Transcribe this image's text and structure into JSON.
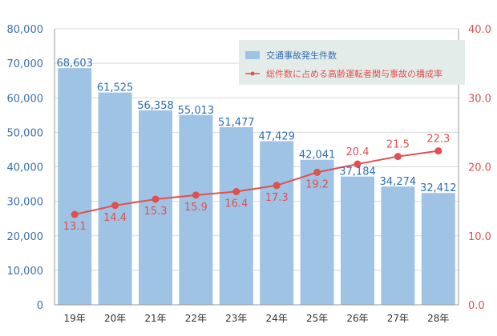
{
  "chart_data": {
    "type": "bar",
    "categories": [
      "19年",
      "20年",
      "21年",
      "22年",
      "23年",
      "24年",
      "25年",
      "26年",
      "27年",
      "28年"
    ],
    "series": [
      {
        "name": "交通事故発生件数",
        "type": "bar",
        "axis": "left",
        "color": "#9fc3e4",
        "values": [
          68603,
          61525,
          56358,
          55013,
          51477,
          47429,
          42041,
          37184,
          34274,
          32412
        ],
        "labels": [
          "68,603",
          "61,525",
          "56,358",
          "55,013",
          "51,477",
          "47,429",
          "42,041",
          "37,184",
          "34,274",
          "32,412"
        ]
      },
      {
        "name": "総件数に占める高齢運転者関与事故の構成率",
        "type": "line",
        "axis": "right",
        "color": "#e0504e",
        "values": [
          13.1,
          14.4,
          15.3,
          15.9,
          16.4,
          17.3,
          19.2,
          20.4,
          21.5,
          22.3
        ],
        "labels": [
          "13.1",
          "14.4",
          "15.3",
          "15.9",
          "16.4",
          "17.3",
          "19.2",
          "20.4",
          "21.5",
          "22.3"
        ]
      }
    ],
    "y_left": {
      "ylim": [
        0,
        80000
      ],
      "ticks": [
        0,
        10000,
        20000,
        30000,
        40000,
        50000,
        60000,
        70000,
        80000
      ],
      "tick_labels": [
        "0",
        "10,000",
        "20,000",
        "30,000",
        "40,000",
        "50,000",
        "60,000",
        "70,000",
        "80,000"
      ]
    },
    "y_right": {
      "ylim": [
        0,
        40
      ],
      "ticks": [
        0,
        10,
        20,
        30,
        40
      ],
      "tick_labels": [
        "0.0",
        "10.0",
        "20.0",
        "30.0",
        "40.0"
      ]
    },
    "grid": true,
    "legend_position": "top-right",
    "colors": {
      "bar": "#9fc3e4",
      "line": "#e0504e",
      "left_axis_text": "#3a6fb0",
      "right_axis_text": "#e0504e",
      "legend_bg": "#e4ecea",
      "grid": "#d9d9d9"
    }
  }
}
